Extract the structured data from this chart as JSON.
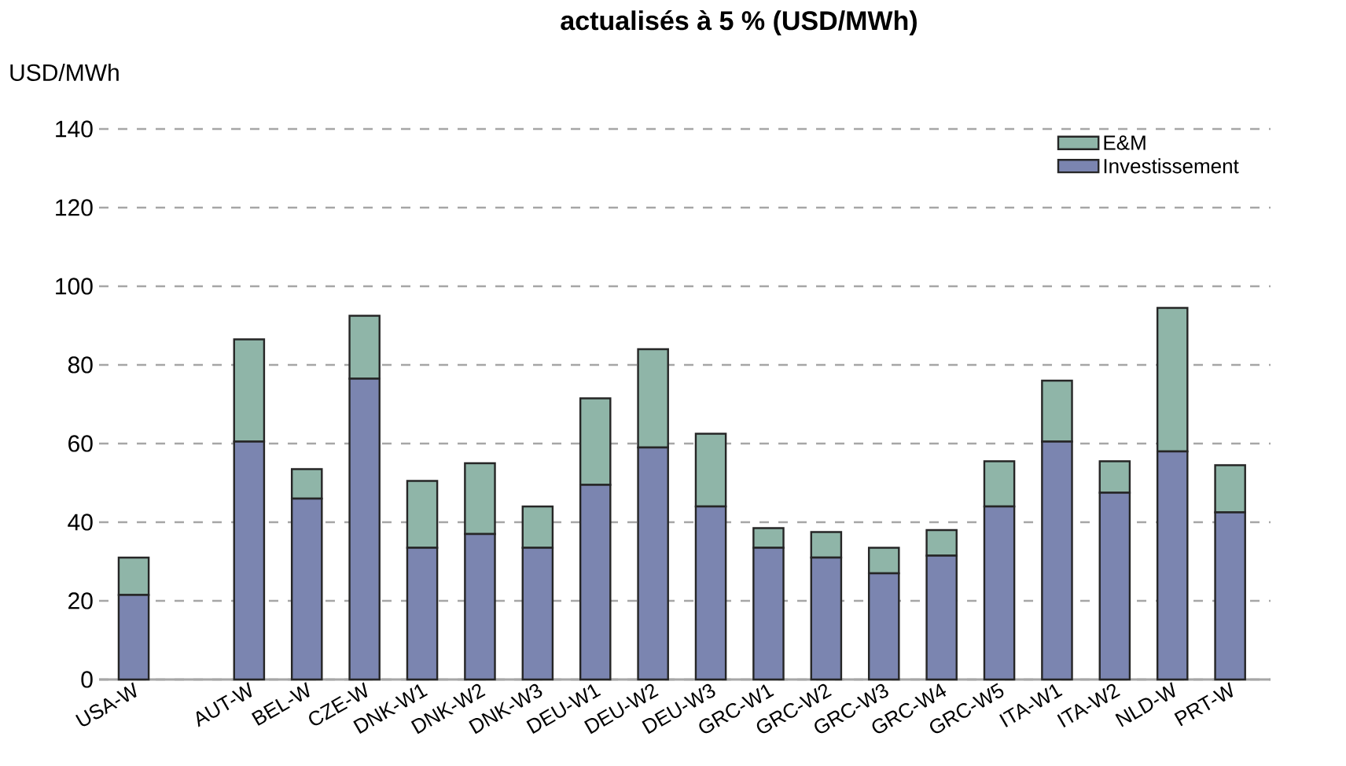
{
  "chart_data": {
    "type": "bar",
    "title": "actualisés à 5 % (USD/MWh)",
    "ylabel": "USD/MWh",
    "categories": [
      "USA-W",
      null,
      "AUT-W",
      "BEL-W",
      "CZE-W",
      "DNK-W1",
      "DNK-W2",
      "DNK-W3",
      "DEU-W1",
      "DEU-W2",
      "DEU-W3",
      "GRC-W1",
      "GRC-W2",
      "GRC-W3",
      "GRC-W4",
      "GRC-W5",
      "ITA-W1",
      "ITA-W2",
      "NLD-W",
      "PRT-W"
    ],
    "stacked": true,
    "series": [
      {
        "name": "Investissement",
        "color": "#7b85b0",
        "values": [
          21.5,
          null,
          60.5,
          46,
          76.5,
          33.5,
          37,
          33.5,
          49.5,
          59,
          44,
          33.5,
          31,
          27,
          31.5,
          44,
          60.5,
          47.5,
          58,
          42.5
        ]
      },
      {
        "name": "E&M",
        "color": "#8fb5a8",
        "values": [
          9.5,
          null,
          26,
          7.5,
          16,
          17,
          18,
          10.5,
          22,
          25,
          18.5,
          5,
          6.5,
          6.5,
          6.5,
          11.5,
          15.5,
          8,
          36.5,
          12
        ]
      }
    ],
    "ylim": [
      0,
      140
    ],
    "yticks": [
      0,
      20,
      40,
      60,
      80,
      100,
      120,
      140
    ],
    "grid": "y",
    "legend": "top right"
  }
}
